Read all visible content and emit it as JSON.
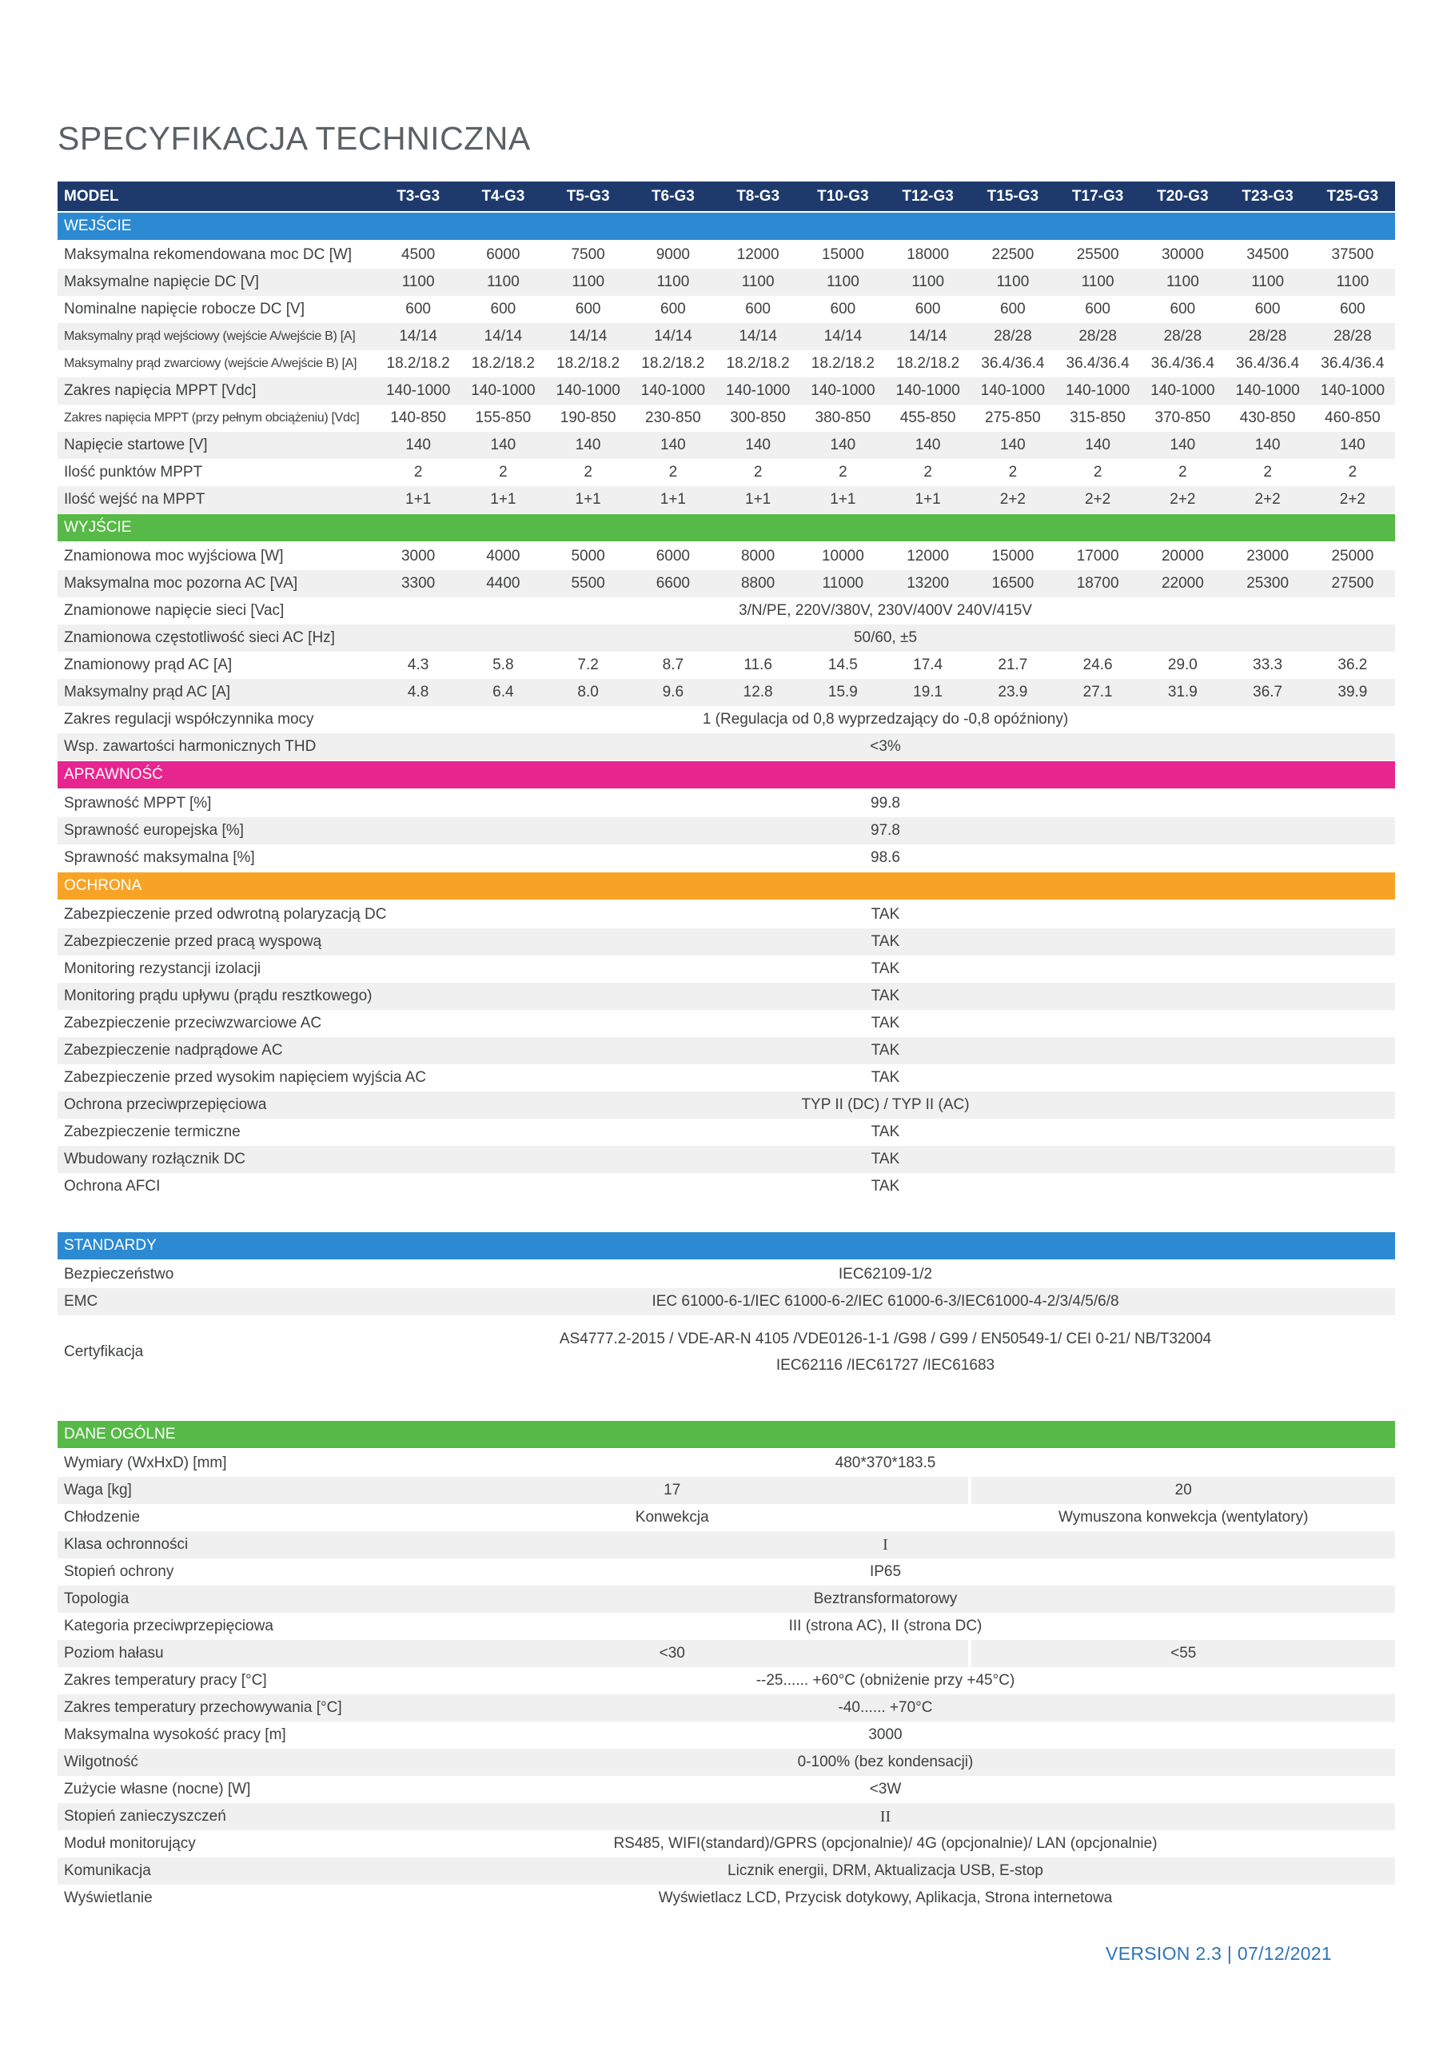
{
  "page": {
    "title": "SPECYFIKACJA TECHNICZNA",
    "footer": "VERSION 2.3 | 07/12/2021"
  },
  "colors": {
    "model_header": "#1e3a6d",
    "input_blue": "#2b8ad2",
    "output_green": "#57b947",
    "efficiency_pink": "#e6258f",
    "protection_orange": "#f7a426",
    "standards_blue": "#2b8ad2",
    "general_green": "#57b947",
    "footer_blue": "#2e74b5"
  },
  "table": {
    "model_label": "MODEL",
    "models": [
      "T3-G3",
      "T4-G3",
      "T5-G3",
      "T6-G3",
      "T8-G3",
      "T10-G3",
      "T12-G3",
      "T15-G3",
      "T17-G3",
      "T20-G3",
      "T23-G3",
      "T25-G3"
    ],
    "sections": [
      {
        "name": "WEJŚCIE",
        "color": "#2b8ad2",
        "rows": [
          {
            "label": "Maksymalna rekomendowana moc DC [W]",
            "values": [
              "4500",
              "6000",
              "7500",
              "9000",
              "12000",
              "15000",
              "18000",
              "22500",
              "25500",
              "30000",
              "34500",
              "37500"
            ]
          },
          {
            "label": "Maksymalne napięcie DC [V]",
            "values": [
              "1100",
              "1100",
              "1100",
              "1100",
              "1100",
              "1100",
              "1100",
              "1100",
              "1100",
              "1100",
              "1100",
              "1100"
            ]
          },
          {
            "label": "Nominalne napięcie robocze DC [V]",
            "values": [
              "600",
              "600",
              "600",
              "600",
              "600",
              "600",
              "600",
              "600",
              "600",
              "600",
              "600",
              "600"
            ]
          },
          {
            "label": "Maksymalny prąd wejściowy (wejście A/wejście B) [A]",
            "values": [
              "14/14",
              "14/14",
              "14/14",
              "14/14",
              "14/14",
              "14/14",
              "14/14",
              "28/28",
              "28/28",
              "28/28",
              "28/28",
              "28/28"
            ]
          },
          {
            "label": "Maksymalny prąd zwarciowy (wejście A/wejście B) [A]",
            "values": [
              "18.2/18.2",
              "18.2/18.2",
              "18.2/18.2",
              "18.2/18.2",
              "18.2/18.2",
              "18.2/18.2",
              "18.2/18.2",
              "36.4/36.4",
              "36.4/36.4",
              "36.4/36.4",
              "36.4/36.4",
              "36.4/36.4"
            ]
          },
          {
            "label": "Zakres napięcia MPPT [Vdc]",
            "values": [
              "140-1000",
              "140-1000",
              "140-1000",
              "140-1000",
              "140-1000",
              "140-1000",
              "140-1000",
              "140-1000",
              "140-1000",
              "140-1000",
              "140-1000",
              "140-1000"
            ]
          },
          {
            "label": "Zakres napięcia MPPT (przy pełnym obciążeniu) [Vdc]",
            "values": [
              "140-850",
              "155-850",
              "190-850",
              "230-850",
              "300-850",
              "380-850",
              "455-850",
              "275-850",
              "315-850",
              "370-850",
              "430-850",
              "460-850"
            ]
          },
          {
            "label": "Napięcie startowe [V]",
            "values": [
              "140",
              "140",
              "140",
              "140",
              "140",
              "140",
              "140",
              "140",
              "140",
              "140",
              "140",
              "140"
            ]
          },
          {
            "label": "Ilość punktów MPPT",
            "values": [
              "2",
              "2",
              "2",
              "2",
              "2",
              "2",
              "2",
              "2",
              "2",
              "2",
              "2",
              "2"
            ]
          },
          {
            "label": "Ilość wejść na MPPT",
            "values": [
              "1+1",
              "1+1",
              "1+1",
              "1+1",
              "1+1",
              "1+1",
              "1+1",
              "2+2",
              "2+2",
              "2+2",
              "2+2",
              "2+2"
            ]
          }
        ]
      },
      {
        "name": "WYJŚCIE",
        "color": "#57b947",
        "rows": [
          {
            "label": "Znamionowa moc wyjściowa [W]",
            "values": [
              "3000",
              "4000",
              "5000",
              "6000",
              "8000",
              "10000",
              "12000",
              "15000",
              "17000",
              "20000",
              "23000",
              "25000"
            ]
          },
          {
            "label": "Maksymalna moc pozorna AC [VA]",
            "values": [
              "3300",
              "4400",
              "5500",
              "6600",
              "8800",
              "11000",
              "13200",
              "16500",
              "18700",
              "22000",
              "25300",
              "27500"
            ]
          },
          {
            "label": "Znamionowe napięcie sieci [Vac]",
            "span": "3/N/PE, 220V/380V, 230V/400V 240V/415V"
          },
          {
            "label": "Znamionowa częstotliwość sieci AC [Hz]",
            "span": "50/60, ±5"
          },
          {
            "label": "Znamionowy prąd AC [A]",
            "values": [
              "4.3",
              "5.8",
              "7.2",
              "8.7",
              "11.6",
              "14.5",
              "17.4",
              "21.7",
              "24.6",
              "29.0",
              "33.3",
              "36.2"
            ]
          },
          {
            "label": "Maksymalny prąd AC [A]",
            "values": [
              "4.8",
              "6.4",
              "8.0",
              "9.6",
              "12.8",
              "15.9",
              "19.1",
              "23.9",
              "27.1",
              "31.9",
              "36.7",
              "39.9"
            ]
          },
          {
            "label": "Zakres regulacji współczynnika mocy",
            "span": "1 (Regulacja od 0,8 wyprzedzający do -0,8 opóźniony)"
          },
          {
            "label": "Wsp. zawartości harmonicznych THD",
            "span": "<3%"
          }
        ]
      },
      {
        "name": "APRAWNOŚĆ",
        "color": "#e6258f",
        "rows": [
          {
            "label": "Sprawność MPPT [%]",
            "span": "99.8"
          },
          {
            "label": "Sprawność europejska [%]",
            "span": "97.8"
          },
          {
            "label": "Sprawność maksymalna [%]",
            "span": "98.6"
          }
        ]
      },
      {
        "name": "OCHRONA",
        "color": "#f7a426",
        "rows": [
          {
            "label": "Zabezpieczenie przed odwrotną polaryzacją DC",
            "span": "TAK"
          },
          {
            "label": "Zabezpieczenie przed pracą wyspową",
            "span": "TAK"
          },
          {
            "label": "Monitoring rezystancji izolacji",
            "span": "TAK"
          },
          {
            "label": "Monitoring prądu upływu (prądu resztkowego)",
            "span": "TAK"
          },
          {
            "label": "Zabezpieczenie przeciwzwarciowe AC",
            "span": "TAK"
          },
          {
            "label": "Zabezpieczenie nadprądowe AC",
            "span": "TAK"
          },
          {
            "label": "Zabezpieczenie przed wysokim napięciem wyjścia AC",
            "span": "TAK"
          },
          {
            "label": "Ochrona przeciwprzepięciowa",
            "span": "TYP II (DC) / TYP II (AC)"
          },
          {
            "label": "Zabezpieczenie termiczne",
            "span": "TAK"
          },
          {
            "label": "Wbudowany rozłącznik DC",
            "span": "TAK"
          },
          {
            "label": "Ochrona AFCI",
            "span": "TAK"
          }
        ]
      },
      {
        "name": "STANDARDY",
        "color": "#2b8ad2",
        "rows": [
          {
            "label": "Bezpieczeństwo",
            "span": "IEC62109-1/2"
          },
          {
            "label": "EMC",
            "span": "IEC 61000-6-1/IEC 61000-6-2/IEC 61000-6-3/IEC61000-4-2/3/4/5/6/8"
          },
          {
            "label": "Certyfikacja",
            "span_lines": [
              "AS4777.2-2015 / VDE-AR-N 4105 /VDE0126-1-1 /G98 / G99 / EN50549-1/ CEI 0-21/ NB/T32004",
              "IEC62116 /IEC61727 /IEC61683"
            ]
          }
        ]
      },
      {
        "name": "DANE OGÓLNE",
        "color": "#57b947",
        "rows": [
          {
            "label": "Wymiary (WxHxD) [mm]",
            "span": "480*370*183.5"
          },
          {
            "label": "Waga [kg]",
            "split": [
              "17",
              "20"
            ]
          },
          {
            "label": "Chłodzenie",
            "split": [
              "Konwekcja",
              "Wymuszona konwekcja (wentylatory)"
            ]
          },
          {
            "label": "Klasa ochronności",
            "span": "I"
          },
          {
            "label": "Stopień ochrony",
            "span": "IP65"
          },
          {
            "label": "Topologia",
            "span": "Beztransformatorowy"
          },
          {
            "label": "Kategoria przeciwprzepięciowa",
            "span": "III (strona AC), II (strona DC)"
          },
          {
            "label": "Poziom hałasu",
            "split": [
              "<30",
              "<55"
            ]
          },
          {
            "label": "Zakres temperatury pracy [°C]",
            "span": "--25...... +60°C (obniżenie przy +45°C)"
          },
          {
            "label": "Zakres temperatury przechowywania [°C]",
            "span": "-40...... +70°C"
          },
          {
            "label": "Maksymalna wysokość pracy [m]",
            "span": "3000"
          },
          {
            "label": "Wilgotność",
            "span": "0-100% (bez kondensacji)"
          },
          {
            "label": "Zużycie własne (nocne) [W]",
            "span": "<3W"
          },
          {
            "label": "Stopień zanieczyszczeń",
            "span": "II"
          },
          {
            "label": "Moduł monitorujący",
            "span": "RS485, WIFI(standard)/GPRS (opcjonalnie)/ 4G (opcjonalnie)/ LAN (opcjonalnie)"
          },
          {
            "label": "Komunikacja",
            "span": "Licznik energii, DRM, Aktualizacja USB, E-stop"
          },
          {
            "label": "Wyświetlanie",
            "span": "Wyświetlacz LCD, Przycisk dotykowy, Aplikacja, Strona internetowa"
          }
        ]
      }
    ]
  }
}
